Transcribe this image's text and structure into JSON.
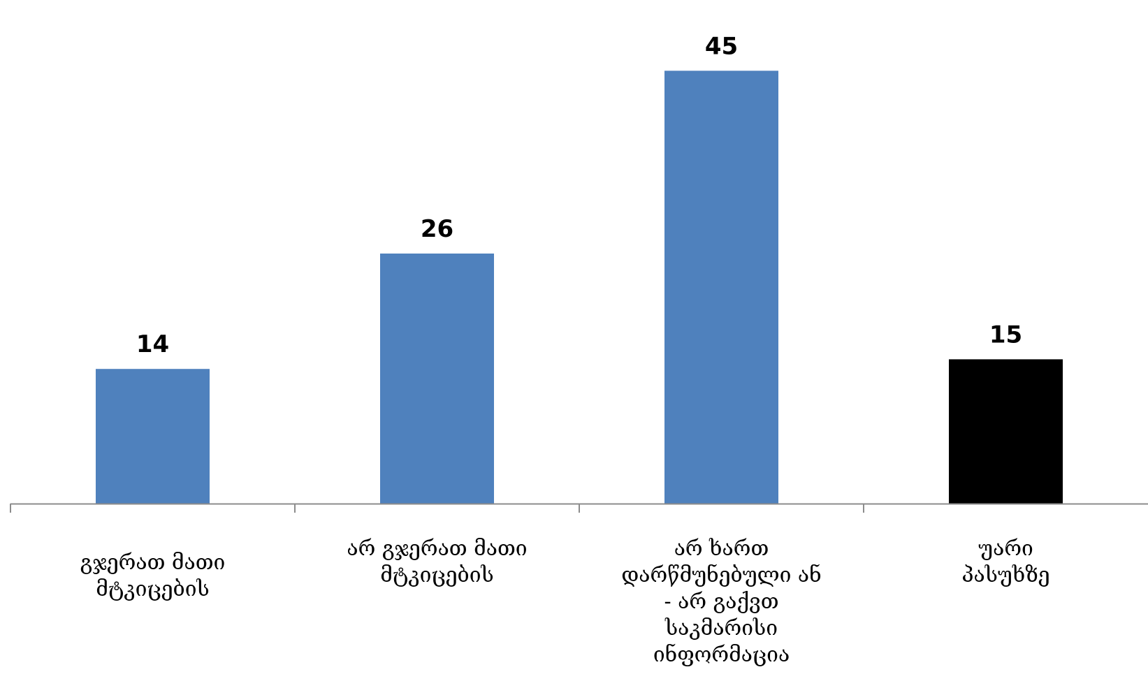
{
  "chart_data": {
    "type": "bar",
    "categories": [
      [
        "გჯერათ მათი",
        "მტკიცების"
      ],
      [
        "არ გჯერათ მათი",
        "მტკიცების"
      ],
      [
        "არ ხართ",
        "დარწმუნებული ან",
        "- არ გაქვთ",
        "საკმარისი",
        "ინფორმაცია"
      ],
      [
        "უარი",
        "პასუხზე"
      ]
    ],
    "values": [
      14,
      26,
      45,
      15
    ],
    "colors": [
      "#4f81bd",
      "#4f81bd",
      "#4f81bd",
      "#000000"
    ],
    "axis_color": "#8c8c8c",
    "ylim": [
      0,
      48
    ],
    "grid": false,
    "legend": "none",
    "title": "",
    "xlabel": "",
    "ylabel": ""
  }
}
